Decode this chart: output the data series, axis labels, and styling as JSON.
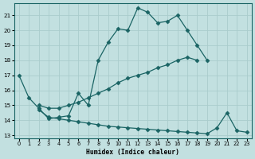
{
  "xlabel": "Humidex (Indice chaleur)",
  "bg_color": "#c2e0e0",
  "grid_color": "#aacccc",
  "line_color": "#1a6464",
  "xlim": [
    -0.5,
    23.5
  ],
  "ylim": [
    12.8,
    21.8
  ],
  "yticks": [
    13,
    14,
    15,
    16,
    17,
    18,
    19,
    20,
    21
  ],
  "xticks": [
    0,
    1,
    2,
    3,
    4,
    5,
    6,
    7,
    8,
    9,
    10,
    11,
    12,
    13,
    14,
    15,
    16,
    17,
    18,
    19,
    20,
    21,
    22,
    23
  ],
  "line1_x": [
    0,
    1,
    2,
    3,
    4,
    5,
    6,
    7,
    8,
    9,
    10,
    11,
    12,
    13,
    14,
    15,
    16,
    17,
    18,
    19
  ],
  "line1_y": [
    17.0,
    15.5,
    14.8,
    14.1,
    14.2,
    14.3,
    15.8,
    15.0,
    18.0,
    19.2,
    20.1,
    20.0,
    21.5,
    21.2,
    20.5,
    20.6,
    21.0,
    20.0,
    19.0,
    18.0
  ],
  "line2_x": [
    2,
    3,
    4,
    5,
    6,
    7,
    8,
    9,
    10,
    11,
    12,
    13,
    14,
    15,
    16,
    17,
    18
  ],
  "line2_y": [
    15.0,
    14.8,
    14.8,
    15.0,
    15.2,
    15.5,
    15.8,
    16.1,
    16.5,
    16.8,
    17.0,
    17.2,
    17.5,
    17.7,
    18.0,
    18.2,
    18.0
  ],
  "line3_x": [
    2,
    3,
    4,
    5,
    6,
    7,
    8,
    9,
    10,
    11,
    12,
    13,
    14,
    15,
    16,
    17,
    18,
    19,
    20,
    21,
    22,
    23
  ],
  "line3_y": [
    14.7,
    14.2,
    14.1,
    14.0,
    13.9,
    13.8,
    13.7,
    13.6,
    13.55,
    13.5,
    13.45,
    13.4,
    13.35,
    13.3,
    13.25,
    13.2,
    13.15,
    13.1,
    13.5,
    14.5,
    13.3,
    13.2
  ]
}
